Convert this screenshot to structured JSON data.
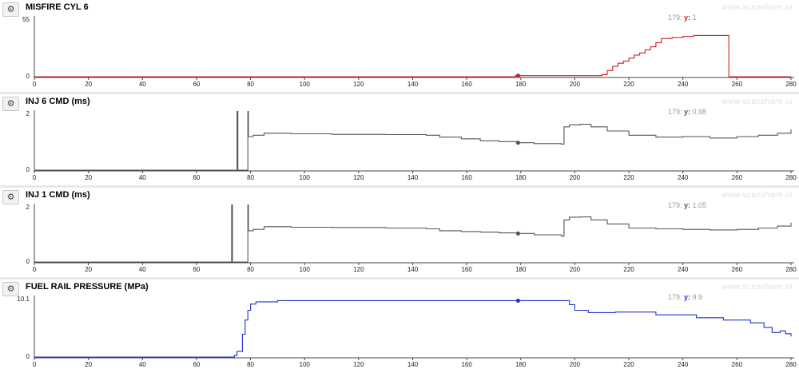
{
  "watermark": "www.scanshare.io",
  "gear_icon": "gear-icon",
  "chart_data": [
    {
      "type": "line",
      "title": "MISFIRE CYL 6",
      "color": "#cc2222",
      "x_range": [
        0,
        280
      ],
      "y_range": [
        0,
        55
      ],
      "y_ticks": [
        "55",
        "0"
      ],
      "x_ticks": [
        "0",
        "20",
        "40",
        "60",
        "80",
        "100",
        "120",
        "140",
        "160",
        "180",
        "200",
        "220",
        "240",
        "260",
        "280"
      ],
      "cursor": {
        "x": 179,
        "y": 1,
        "x_label": "179:",
        "y_key": "y:",
        "y_value": "1"
      },
      "step": true,
      "points": [
        [
          0,
          0
        ],
        [
          146,
          0
        ],
        [
          178,
          1
        ],
        [
          208,
          1
        ],
        [
          210,
          2
        ],
        [
          212,
          6
        ],
        [
          214,
          10
        ],
        [
          216,
          13
        ],
        [
          218,
          15
        ],
        [
          220,
          18
        ],
        [
          222,
          21
        ],
        [
          224,
          23
        ],
        [
          226,
          26
        ],
        [
          228,
          29
        ],
        [
          230,
          33
        ],
        [
          232,
          37
        ],
        [
          236,
          38
        ],
        [
          240,
          39
        ],
        [
          244,
          40
        ],
        [
          250,
          40
        ],
        [
          257,
          40
        ],
        [
          257,
          0
        ],
        [
          280,
          0
        ]
      ]
    },
    {
      "type": "line",
      "title": "INJ 6 CMD (ms)",
      "color": "#555555",
      "x_range": [
        0,
        280
      ],
      "y_range": [
        0,
        2
      ],
      "y_ticks": [
        "2",
        "0"
      ],
      "x_ticks": [
        "0",
        "20",
        "40",
        "60",
        "80",
        "100",
        "120",
        "140",
        "160",
        "180",
        "200",
        "220",
        "240",
        "260",
        "280"
      ],
      "cursor": {
        "x": 179,
        "y": 0.98,
        "x_label": "179:",
        "y_key": "y:",
        "y_value": "0.98"
      },
      "step": true,
      "points": [
        [
          0,
          0
        ],
        [
          75,
          0
        ],
        [
          75,
          2.1
        ],
        [
          75.3,
          0
        ],
        [
          79,
          0
        ],
        [
          79,
          2.1
        ],
        [
          79.2,
          1.2
        ],
        [
          81,
          1.25
        ],
        [
          85,
          1.32
        ],
        [
          95,
          1.3
        ],
        [
          110,
          1.28
        ],
        [
          130,
          1.27
        ],
        [
          145,
          1.25
        ],
        [
          150,
          1.18
        ],
        [
          158,
          1.12
        ],
        [
          165,
          1.05
        ],
        [
          172,
          1.02
        ],
        [
          179,
          0.98
        ],
        [
          185,
          0.95
        ],
        [
          195,
          0.93
        ],
        [
          196,
          1.55
        ],
        [
          198,
          1.62
        ],
        [
          202,
          1.64
        ],
        [
          206,
          1.55
        ],
        [
          212,
          1.4
        ],
        [
          220,
          1.25
        ],
        [
          230,
          1.18
        ],
        [
          240,
          1.2
        ],
        [
          250,
          1.15
        ],
        [
          260,
          1.2
        ],
        [
          268,
          1.25
        ],
        [
          275,
          1.32
        ],
        [
          280,
          1.45
        ]
      ]
    },
    {
      "type": "line",
      "title": "INJ 1 CMD (ms)",
      "color": "#555555",
      "x_range": [
        0,
        280
      ],
      "y_range": [
        0,
        2
      ],
      "y_ticks": [
        "2",
        "0"
      ],
      "x_ticks": [
        "0",
        "20",
        "40",
        "60",
        "80",
        "100",
        "120",
        "140",
        "160",
        "180",
        "200",
        "220",
        "240",
        "260",
        "280"
      ],
      "cursor": {
        "x": 179,
        "y": 1.05,
        "x_label": "179:",
        "y_key": "y:",
        "y_value": "1.05"
      },
      "step": true,
      "points": [
        [
          0,
          0
        ],
        [
          73,
          0
        ],
        [
          73,
          2.1
        ],
        [
          73.3,
          0
        ],
        [
          79,
          0
        ],
        [
          79,
          2.1
        ],
        [
          79.2,
          1.15
        ],
        [
          81,
          1.2
        ],
        [
          85,
          1.3
        ],
        [
          95,
          1.28
        ],
        [
          110,
          1.27
        ],
        [
          130,
          1.25
        ],
        [
          145,
          1.22
        ],
        [
          150,
          1.15
        ],
        [
          158,
          1.12
        ],
        [
          165,
          1.1
        ],
        [
          172,
          1.07
        ],
        [
          179,
          1.05
        ],
        [
          185,
          1.0
        ],
        [
          195,
          0.95
        ],
        [
          196,
          1.55
        ],
        [
          198,
          1.65
        ],
        [
          202,
          1.66
        ],
        [
          206,
          1.55
        ],
        [
          212,
          1.4
        ],
        [
          220,
          1.25
        ],
        [
          230,
          1.22
        ],
        [
          240,
          1.2
        ],
        [
          250,
          1.18
        ],
        [
          260,
          1.2
        ],
        [
          268,
          1.25
        ],
        [
          275,
          1.32
        ],
        [
          280,
          1.45
        ]
      ]
    },
    {
      "type": "line",
      "title": "FUEL RAIL PRESSURE (MPa)",
      "color": "#2233cc",
      "x_range": [
        0,
        280
      ],
      "y_range": [
        0,
        10.1
      ],
      "y_ticks": [
        "10.1",
        "0"
      ],
      "x_ticks": [
        "0",
        "20",
        "40",
        "60",
        "80",
        "100",
        "120",
        "140",
        "160",
        "180",
        "200",
        "220",
        "240",
        "260",
        "280"
      ],
      "cursor": {
        "x": 179,
        "y": 9.9,
        "x_label": "179:",
        "y_key": "y:",
        "y_value": "9.9"
      },
      "step": true,
      "points": [
        [
          0,
          0
        ],
        [
          70,
          0
        ],
        [
          74,
          0.3
        ],
        [
          75,
          1.0
        ],
        [
          77,
          4.0
        ],
        [
          78,
          6.5
        ],
        [
          79,
          8.2
        ],
        [
          80,
          9.3
        ],
        [
          82,
          9.7
        ],
        [
          90,
          9.9
        ],
        [
          100,
          9.9
        ],
        [
          140,
          9.9
        ],
        [
          179,
          9.9
        ],
        [
          196,
          9.9
        ],
        [
          198,
          9.2
        ],
        [
          200,
          8.2
        ],
        [
          205,
          7.8
        ],
        [
          215,
          7.9
        ],
        [
          230,
          7.4
        ],
        [
          245,
          6.9
        ],
        [
          255,
          6.5
        ],
        [
          265,
          6.0
        ],
        [
          270,
          5.2
        ],
        [
          273,
          4.3
        ],
        [
          276,
          4.6
        ],
        [
          278,
          4.1
        ],
        [
          280,
          3.6
        ]
      ]
    }
  ]
}
